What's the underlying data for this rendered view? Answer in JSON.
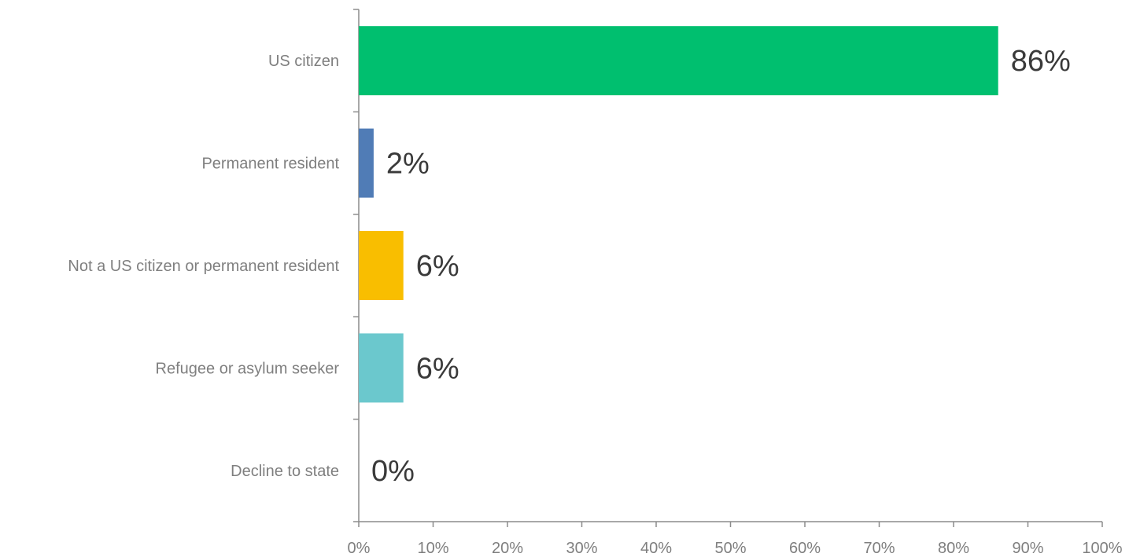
{
  "chart_data": {
    "type": "bar",
    "orientation": "horizontal",
    "title": "",
    "xlabel": "",
    "ylabel": "",
    "categories": [
      "US citizen",
      "Permanent resident",
      "Not a US citizen or permanent resident",
      "Refugee or asylum seeker",
      "Decline to state"
    ],
    "values": [
      86,
      2,
      6,
      6,
      0
    ],
    "value_labels": [
      "86%",
      "2%",
      "6%",
      "6%",
      "0%"
    ],
    "colors": [
      "#00bf6f",
      "#507cb6",
      "#f9be00",
      "#6bc8cd",
      "#9e9e9e"
    ],
    "xlim": [
      0,
      100
    ],
    "x_ticks": [
      0,
      10,
      20,
      30,
      40,
      50,
      60,
      70,
      80,
      90,
      100
    ],
    "x_tick_labels": [
      "0%",
      "10%",
      "20%",
      "30%",
      "40%",
      "50%",
      "60%",
      "70%",
      "80%",
      "90%",
      "100%"
    ],
    "grid": false,
    "legend": "none"
  }
}
